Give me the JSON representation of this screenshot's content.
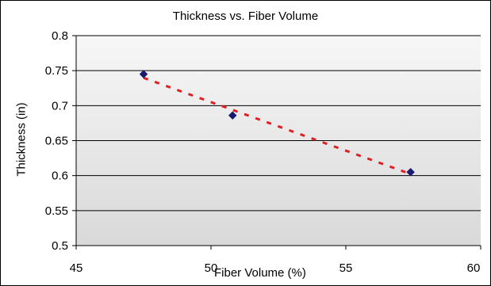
{
  "chart_data": {
    "type": "scatter",
    "title": "Thickness vs. Fiber Volume",
    "xlabel": "Fiber Volume (%)",
    "ylabel": "Thickness (in)",
    "xlim": [
      45,
      60
    ],
    "ylim": [
      0.5,
      0.8
    ],
    "x_ticks": [
      "45",
      "50",
      "55",
      "60"
    ],
    "y_ticks": [
      "0.5",
      "0.55",
      "0.6",
      "0.65",
      "0.7",
      "0.75",
      "0.8"
    ],
    "grid": "horizontal",
    "legend": "none",
    "series": [
      {
        "x": [
          47.5,
          50.8,
          57.4
        ],
        "y": [
          0.745,
          0.686,
          0.605
        ],
        "marker": "diamond",
        "color": "#1a1a6e"
      }
    ],
    "trendline": {
      "type": "linear",
      "color": "#e02020",
      "style": "dashed",
      "x_range": [
        47.5,
        57.4
      ]
    }
  },
  "colors": {
    "plot_background_top": "#f7f7f7",
    "plot_background_bottom": "#d9d9d9",
    "gridline": "#000000"
  }
}
